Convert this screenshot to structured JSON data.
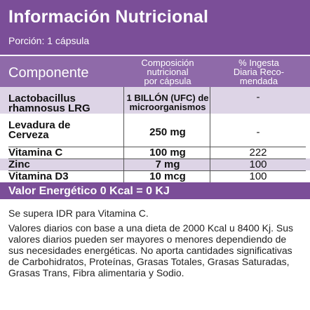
{
  "header": {
    "title": "Información Nutricional",
    "portion": "Porción: 1 cápsula"
  },
  "columns": {
    "component": "Componente",
    "composition": [
      "Composición",
      "nutricional",
      "por cápsula"
    ],
    "percent": [
      "% Ingesta",
      "Diaria Reco-",
      "mendada"
    ]
  },
  "rows": [
    {
      "name": [
        "Lactobacillus",
        "rhamnosus LRG"
      ],
      "amount": [
        "1 BILLÓN (UFC) de",
        "microorganismos"
      ],
      "pct": "-"
    },
    {
      "name": [
        "Levadura de",
        "Cerveza"
      ],
      "amount": [
        "250 mg"
      ],
      "pct": "-"
    },
    {
      "name": [
        "Vitamina C"
      ],
      "amount": [
        "100 mg"
      ],
      "pct": "222"
    },
    {
      "name": [
        "Zinc"
      ],
      "amount": [
        "7 mg"
      ],
      "pct": "100"
    },
    {
      "name": [
        "Vitamina D3"
      ],
      "amount": [
        "10 mcg"
      ],
      "pct": "100"
    }
  ],
  "energy": "Valor Energético   0 Kcal = 0 KJ",
  "notes": [
    "Se supera IDR para Vitamina C.",
    "Valores diarios con base a una dieta de 2000 Kcal u 8400 Kj. Sus valores diarios pueden ser mayores o menores dependiendo de sus necesidades energéticas. No aporta cantidades significativas de Carbohidratos, Proteínas, Grasas Totales, Grasas Saturadas, Grasas Trans, Fibra alimentaria y Sodio."
  ],
  "colors": {
    "header": "#7b4e98",
    "column_header": "#8f6aa9",
    "row_shade": "#ddd4e6"
  }
}
